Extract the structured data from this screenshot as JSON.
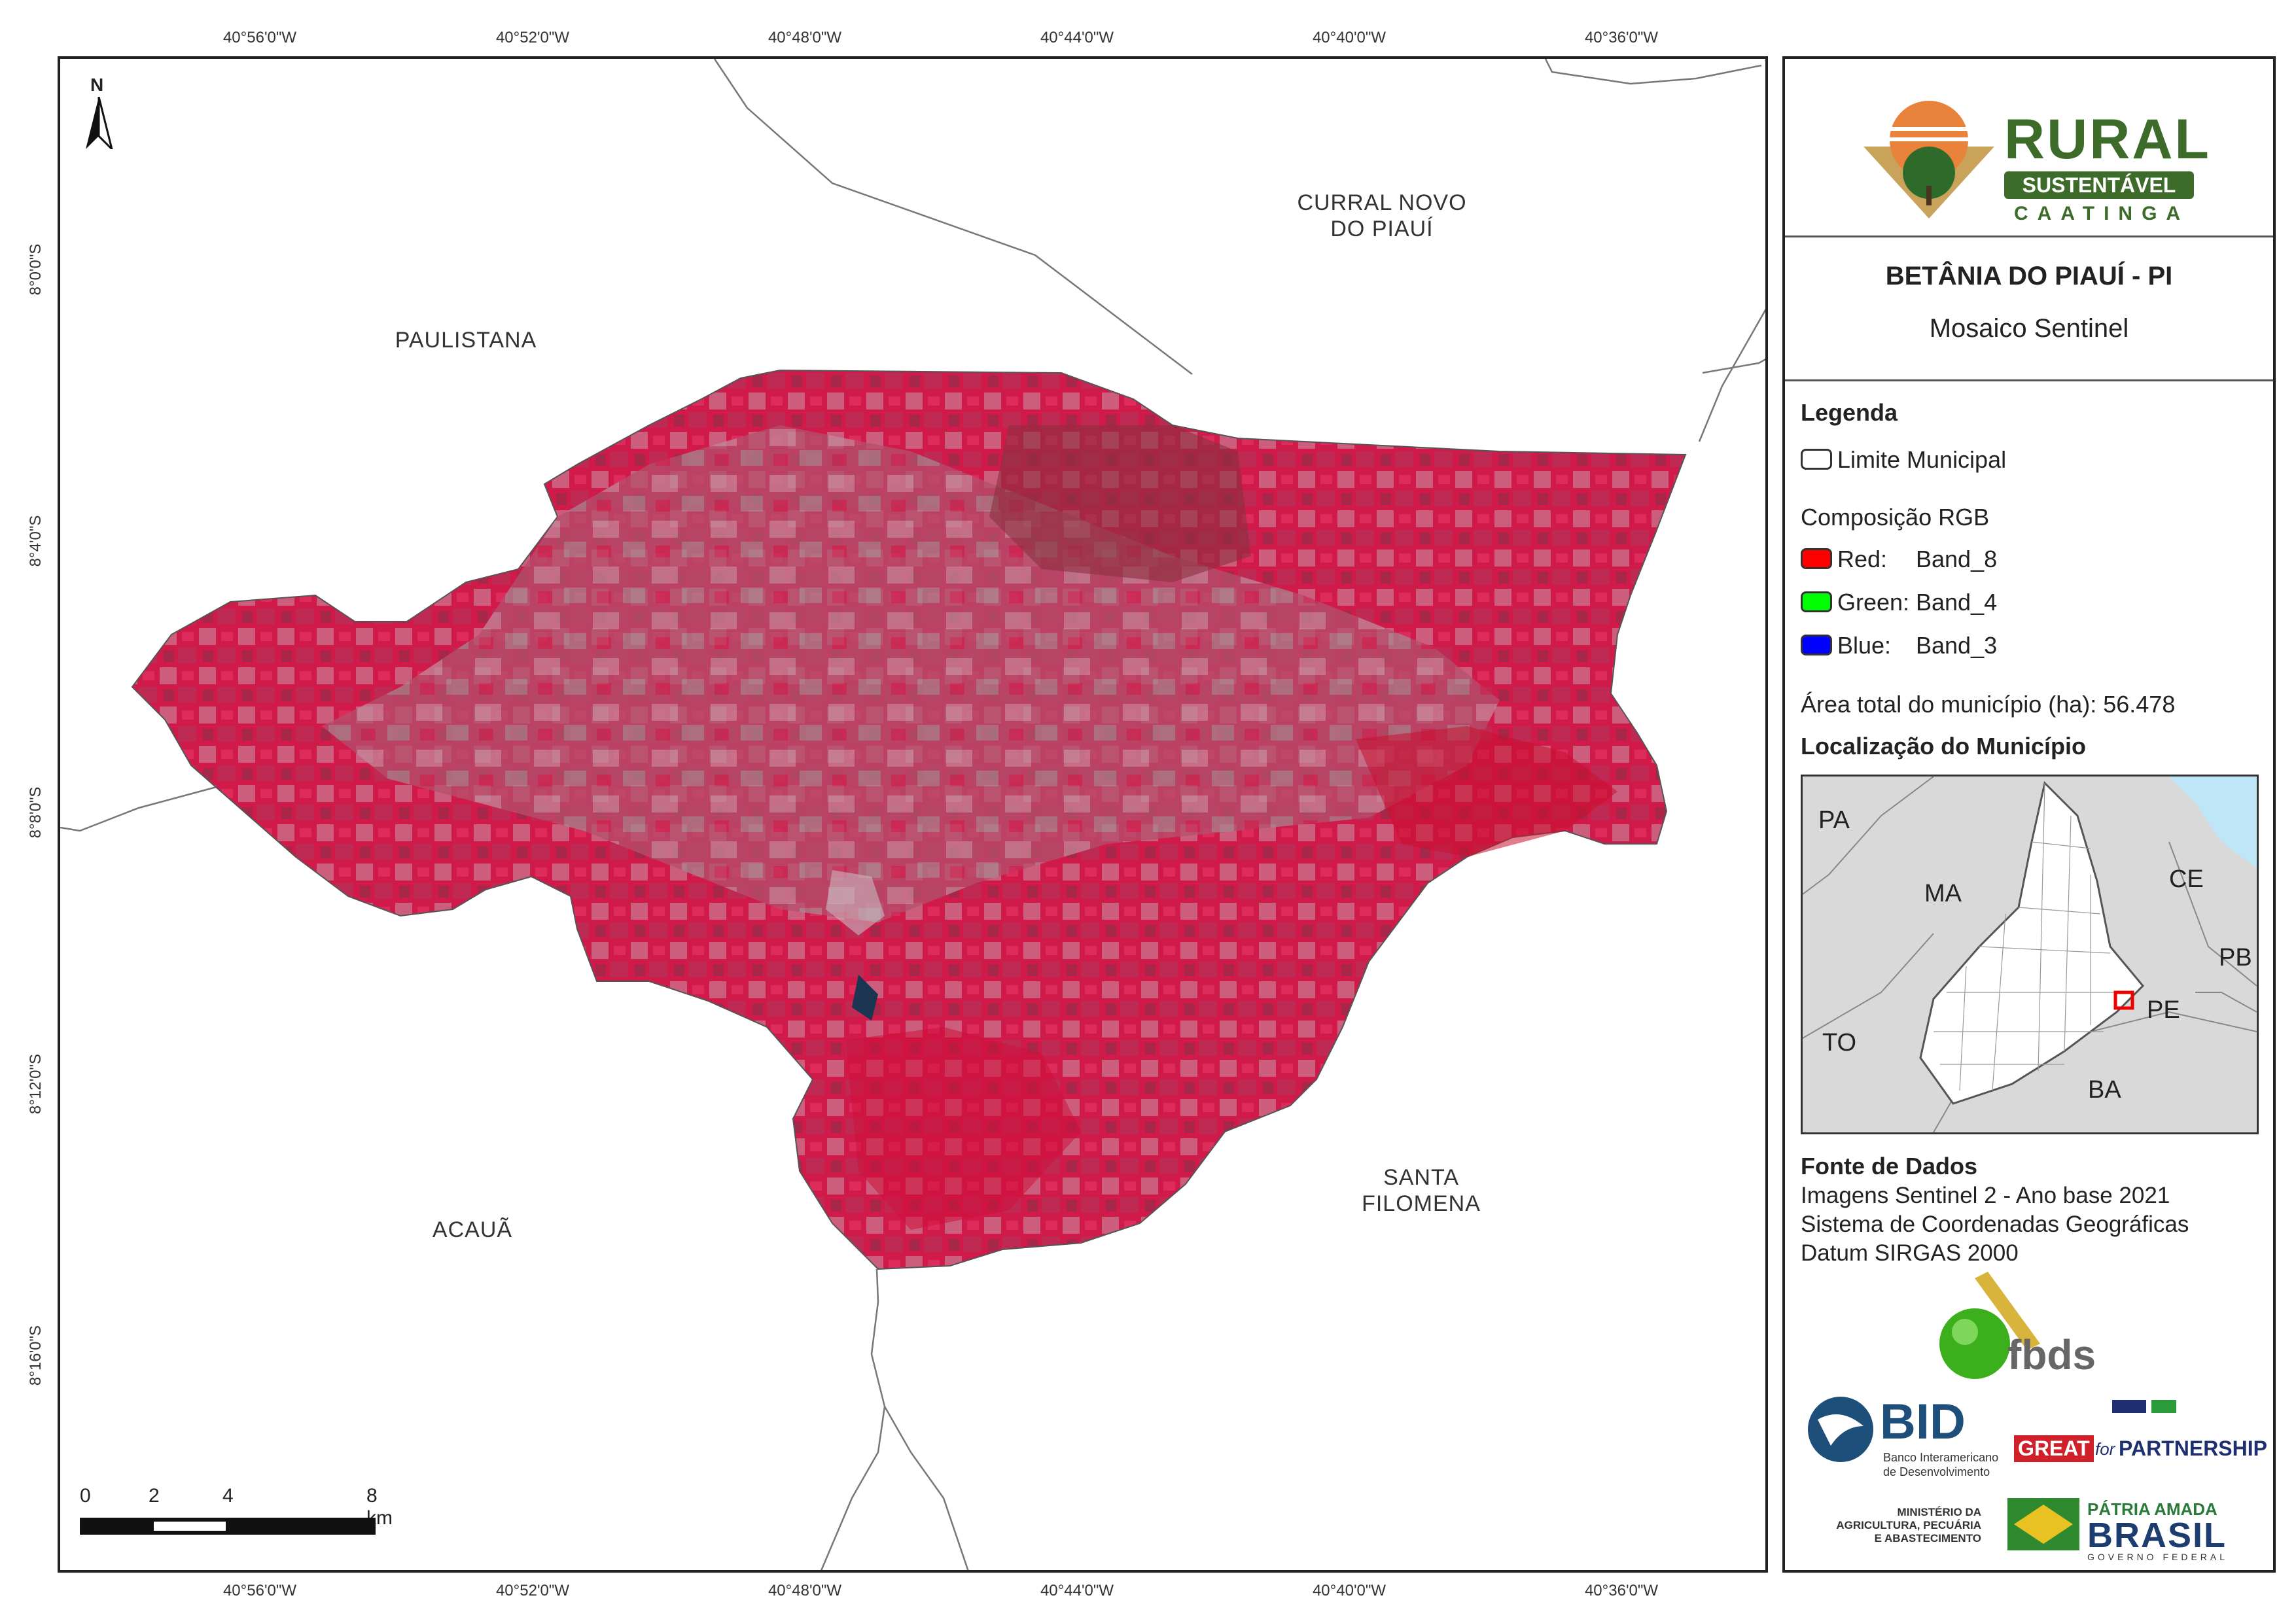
{
  "map": {
    "top_ticks": [
      "40°56'0\"W",
      "40°52'0\"W",
      "40°48'0\"W",
      "40°44'0\"W",
      "40°40'0\"W",
      "40°36'0\"W"
    ],
    "bottom_ticks": [
      "40°56'0\"W",
      "40°52'0\"W",
      "40°48'0\"W",
      "40°44'0\"W",
      "40°40'0\"W",
      "40°36'0\"W"
    ],
    "left_ticks": [
      "8°0'0\"S",
      "8°4'0\"S",
      "8°8'0\"S",
      "8°12'0\"S",
      "8°16'0\"S"
    ],
    "north_label": "N",
    "neighbors": {
      "currais_line1": "CURRAL NOVO",
      "currais_line2": "DO PIAUÍ",
      "paulistana": "PAULISTANA",
      "acaua": "ACAUÃ",
      "santa_line1": "SANTA",
      "santa_line2": "FILOMENA"
    },
    "scale_bar": {
      "labels": [
        "0",
        "2",
        "4",
        "8 km"
      ]
    }
  },
  "panel": {
    "logo": {
      "word1": "RURAL",
      "word2": "SUSTENTÁVEL",
      "word3": "CAATINGA"
    },
    "title": "BETÂNIA DO PIAUÍ - PI",
    "subtitle": "Mosaico Sentinel",
    "legend": {
      "heading": "Legenda",
      "limit_label": "Limite Municipal",
      "rgb_heading": "Composição RGB",
      "red_label": "Red:",
      "red_band": "Band_8",
      "green_label": "Green:",
      "green_band": "Band_4",
      "blue_label": "Blue:",
      "blue_band": "Band_3",
      "area_text": "Área total do município (ha): 56.478",
      "colors": {
        "red": "#ff0000",
        "green": "#00ff00",
        "blue": "#0000ff"
      }
    },
    "location": {
      "heading": "Localização do Município",
      "states": {
        "pa": "PA",
        "ma": "MA",
        "ce": "CE",
        "pb": "PB",
        "pe": "PE",
        "to": "TO",
        "ba": "BA"
      }
    },
    "sources": {
      "heading": "Fonte de Dados",
      "line1": "Imagens Sentinel 2 - Ano base 2021",
      "line2": "Sistema de Coordenadas Geográficas",
      "line3": "Datum SIRGAS 2000"
    },
    "partners": {
      "fbds": "fbds",
      "bid": "BID",
      "bid_sub1": "Banco Interamericano",
      "bid_sub2": "de Desenvolvimento",
      "great": "GREAT",
      "for": "for",
      "partnership": "PARTNERSHIP",
      "ministry1": "MINISTÉRIO DA",
      "ministry2": "AGRICULTURA, PECUÁRIA",
      "ministry3": "E ABASTECIMENTO",
      "patria": "PÁTRIA AMADA",
      "brasil": "BRASIL",
      "gov": "GOVERNO FEDERAL"
    }
  }
}
